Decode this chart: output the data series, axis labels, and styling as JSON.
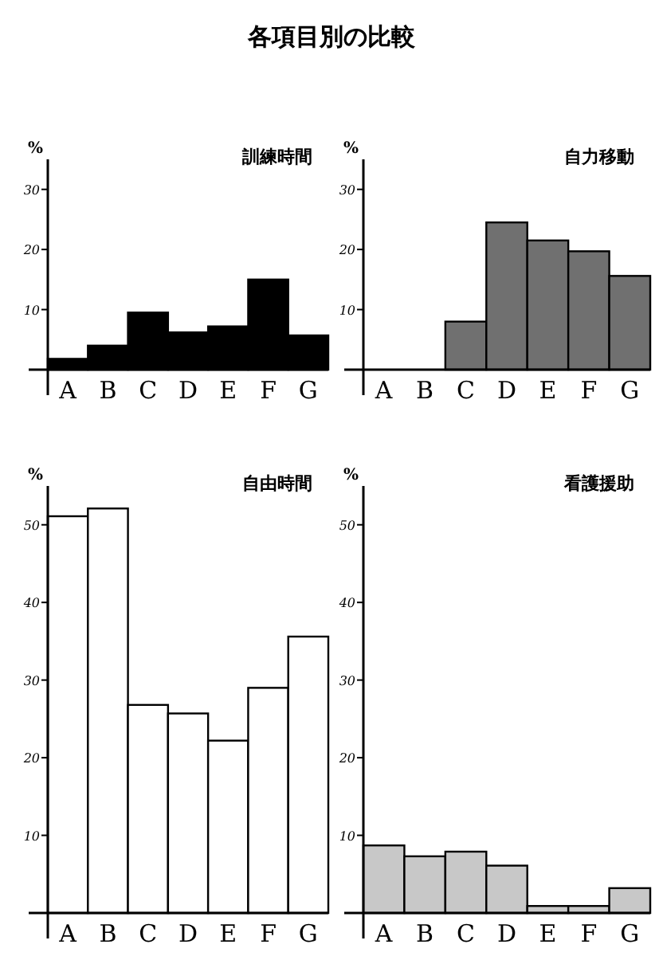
{
  "chart_data": [
    {
      "type": "bar",
      "title": "訓練時間",
      "ylabel": "%",
      "annotations": [
        "各項目別の比較"
      ],
      "categories": [
        "A",
        "B",
        "C",
        "D",
        "E",
        "F",
        "G"
      ],
      "values": [
        1.8,
        4,
        9.5,
        6.2,
        7.2,
        15,
        5.7
      ],
      "color": "#000000",
      "ylim": [
        0,
        35
      ],
      "yticks": [
        10,
        20,
        30
      ]
    },
    {
      "type": "bar",
      "title": "自力移動",
      "ylabel": "%",
      "categories": [
        "A",
        "B",
        "C",
        "D",
        "E",
        "F",
        "G"
      ],
      "values": [
        0,
        0,
        8,
        24.5,
        21.5,
        19.7,
        15.6
      ],
      "color": "#707070",
      "ylim": [
        0,
        35
      ],
      "yticks": [
        10,
        20,
        30
      ]
    },
    {
      "type": "bar",
      "title": "自由時間",
      "ylabel": "%",
      "categories": [
        "A",
        "B",
        "C",
        "D",
        "E",
        "F",
        "G"
      ],
      "values": [
        51.1,
        52.1,
        26.8,
        25.7,
        22.2,
        29,
        35.6
      ],
      "color": "#ffffff",
      "ylim": [
        0,
        55
      ],
      "yticks": [
        10,
        20,
        30,
        40,
        50
      ]
    },
    {
      "type": "bar",
      "title": "看護援助",
      "ylabel": "%",
      "categories": [
        "A",
        "B",
        "C",
        "D",
        "E",
        "F",
        "G"
      ],
      "values": [
        8.7,
        7.3,
        7.9,
        6.1,
        0.9,
        0.9,
        3.2
      ],
      "color": "#c8c8c8",
      "ylim": [
        0,
        55
      ],
      "yticks": [
        10,
        20,
        30,
        40,
        50
      ]
    }
  ]
}
